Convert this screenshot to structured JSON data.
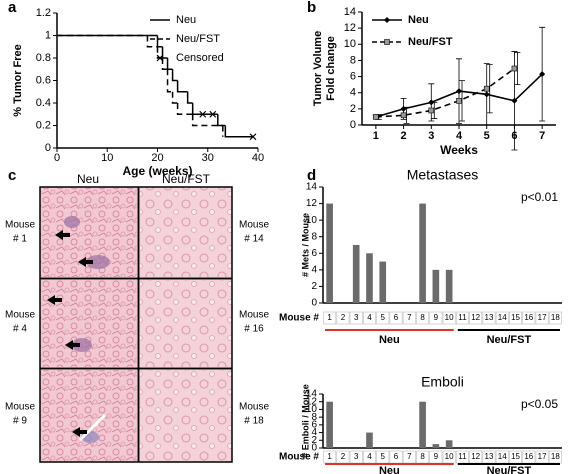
{
  "panel_labels": [
    "a",
    "b",
    "c",
    "d"
  ],
  "chart_data": [
    {
      "type": "line",
      "step": true,
      "xlabel": "Age (weeks)",
      "ylabel": "% Tumor Free",
      "xlim": [
        0,
        40
      ],
      "xticks": [
        0,
        10,
        20,
        30,
        40
      ],
      "ylim": [
        0,
        1.2
      ],
      "yticks": [
        0,
        0.2,
        0.4,
        0.6,
        0.8,
        1,
        1.2
      ],
      "legend": "upper right",
      "series": [
        {
          "name": "Neu",
          "color": "#000000",
          "dash": "solid",
          "x": [
            0,
            20,
            21,
            22,
            23,
            24,
            26,
            27,
            32,
            33.5,
            39
          ],
          "values": [
            1,
            0.9,
            0.8,
            0.7,
            0.6,
            0.5,
            0.4,
            0.3,
            0.2,
            0.1,
            0.1
          ]
        },
        {
          "name": "Neu/FST",
          "color": "#000000",
          "dash": "dashed",
          "x": [
            0,
            18,
            20,
            21,
            22,
            23,
            24,
            27,
            33
          ],
          "values": [
            1,
            0.9,
            0.8,
            0.7,
            0.5,
            0.4,
            0.3,
            0.2,
            0.1
          ]
        },
        {
          "name": "Censored",
          "color": "#000000",
          "marker": "x",
          "x": [
            29,
            31,
            39
          ],
          "values": [
            0.3,
            0.3,
            0.1
          ]
        }
      ]
    },
    {
      "type": "line",
      "xlabel": "Weeks",
      "ylabel": [
        "Tumor Volume",
        "Fold change"
      ],
      "categories": [
        "1",
        "2",
        "3",
        "4",
        "5",
        "6",
        "7"
      ],
      "ylim": [
        0,
        14
      ],
      "yticks": [
        0,
        2,
        4,
        6,
        8,
        10,
        12,
        14
      ],
      "legend": "upper left",
      "series": [
        {
          "name": "Neu",
          "color": "#000000",
          "dash": "solid",
          "marker": "diamond",
          "values": [
            1,
            2,
            2.8,
            4.2,
            3.8,
            3,
            6.3
          ],
          "errors": [
            0.2,
            1.3,
            2.3,
            4,
            3.8,
            6.1,
            5.8
          ]
        },
        {
          "name": "Neu/FST",
          "color": "#000000",
          "dash": "dashed",
          "marker": "square",
          "values": [
            1,
            1.2,
            1.8,
            3,
            4.5,
            7,
            null
          ],
          "errors": [
            0.3,
            1,
            1,
            2.5,
            3,
            2,
            null
          ]
        }
      ]
    },
    {
      "type": "bar",
      "title": "Metastases",
      "ylabel": "# Mets / Mouse",
      "xlabel": "Mouse #",
      "annotation": "p<0.01",
      "color": "#6b6b6b",
      "categories": [
        "1",
        "2",
        "3",
        "4",
        "5",
        "6",
        "7",
        "8",
        "9",
        "10",
        "11",
        "12",
        "13",
        "14",
        "15",
        "16",
        "17",
        "18"
      ],
      "values": [
        12,
        0,
        7,
        6,
        5,
        0,
        0,
        12,
        4,
        4,
        0,
        0,
        0,
        0,
        0,
        0,
        0,
        0
      ],
      "ylim": [
        0,
        14
      ],
      "yticks": [
        0,
        2,
        4,
        6,
        8,
        10,
        12,
        14
      ],
      "groups": [
        {
          "name": "Neu",
          "size": 10,
          "color": "#e0322a"
        },
        {
          "name": "Neu/FST",
          "size": 8,
          "color": "#000000"
        }
      ]
    },
    {
      "type": "bar",
      "title": "Emboli",
      "ylabel": "# Emboli / Mouse",
      "xlabel": "Mouse #",
      "annotation": "p<0.05",
      "color": "#6b6b6b",
      "categories": [
        "1",
        "2",
        "3",
        "4",
        "5",
        "6",
        "7",
        "8",
        "9",
        "10",
        "11",
        "12",
        "13",
        "14",
        "15",
        "16",
        "17",
        "18"
      ],
      "values": [
        12,
        0,
        0,
        4,
        0,
        0,
        0,
        12,
        1,
        2,
        0,
        0,
        0,
        0,
        0,
        0,
        0,
        0
      ],
      "ylim": [
        0,
        14
      ],
      "yticks": [
        0,
        2,
        4,
        6,
        8,
        10,
        12,
        14
      ],
      "groups": [
        {
          "name": "Neu",
          "size": 10,
          "color": "#e0322a"
        },
        {
          "name": "Neu/FST",
          "size": 8,
          "color": "#000000"
        }
      ]
    }
  ],
  "panel_c": {
    "columns": [
      "Neu",
      "Neu/FST"
    ],
    "left_labels": [
      [
        "Mouse",
        "# 1"
      ],
      [
        "Mouse",
        "# 4"
      ],
      [
        "Mouse",
        "# 9"
      ]
    ],
    "right_labels": [
      [
        "Mouse",
        "# 14"
      ],
      [
        "Mouse",
        "# 16"
      ],
      [
        "Mouse",
        "# 18"
      ]
    ]
  }
}
